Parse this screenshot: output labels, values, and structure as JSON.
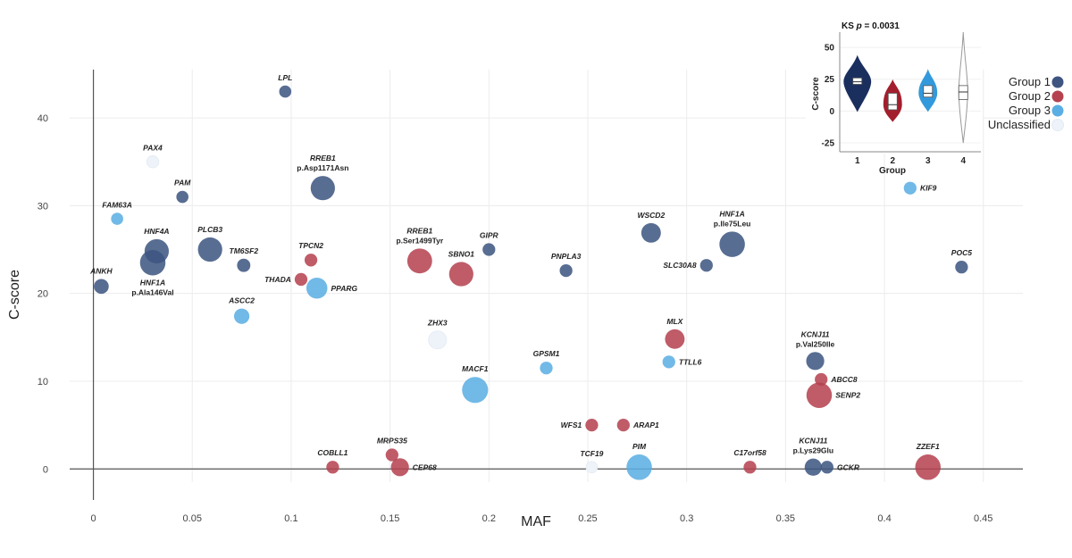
{
  "chart_data": {
    "type": "scatter",
    "xlabel": "MAF",
    "ylabel": "C-score",
    "xlim": [
      -0.012,
      0.47
    ],
    "ylim": [
      -1.5,
      45.5
    ],
    "xticks": [
      0,
      0.05,
      0.1,
      0.15,
      0.2,
      0.25,
      0.3,
      0.35,
      0.4,
      0.45
    ],
    "xtick_labels": [
      "0",
      "0.05",
      "0.1",
      "0.15",
      "0.2",
      "0.25",
      "0.3",
      "0.35",
      "0.4",
      "0.45"
    ],
    "yticks": [
      0,
      10,
      20,
      30,
      40
    ],
    "ytick_labels": [
      "0",
      "10",
      "20",
      "30",
      "40"
    ],
    "grid": true,
    "legend": {
      "placement": "right",
      "items": [
        {
          "label": "Group 1",
          "color": "#3d5580"
        },
        {
          "label": "Group 2",
          "color": "#b5414f"
        },
        {
          "label": "Group 3",
          "color": "#5aaee3"
        },
        {
          "label": "Unclassified",
          "color": "#eef3f9"
        }
      ]
    },
    "points": [
      {
        "gene": "LPL",
        "variant": "",
        "x": 0.097,
        "y": 43,
        "size": 1,
        "group": "Group 1",
        "label_pos": "above"
      },
      {
        "gene": "PAX4",
        "variant": "",
        "x": 0.03,
        "y": 35,
        "size": 1,
        "group": "Unclassified",
        "label_pos": "above"
      },
      {
        "gene": "PAM",
        "variant": "",
        "x": 0.045,
        "y": 31,
        "size": 1,
        "group": "Group 1",
        "label_pos": "above"
      },
      {
        "gene": "RREB1",
        "variant": "p.Asp1171Asn",
        "x": 0.116,
        "y": 32,
        "size": 4,
        "group": "Group 1",
        "label_pos": "above"
      },
      {
        "gene": "FAM63A",
        "variant": "",
        "x": 0.012,
        "y": 28.5,
        "size": 1,
        "group": "Group 3",
        "label_pos": "above"
      },
      {
        "gene": "HNF4A",
        "variant": "",
        "x": 0.032,
        "y": 24.8,
        "size": 4,
        "group": "Group 1",
        "label_pos": "above"
      },
      {
        "gene": "HNF1A",
        "variant": "p.Ala146Val",
        "x": 0.03,
        "y": 23.5,
        "size": 4.4,
        "group": "Group 1",
        "label_pos": "below"
      },
      {
        "gene": "PLCB3",
        "variant": "",
        "x": 0.059,
        "y": 25,
        "size": 4,
        "group": "Group 1",
        "label_pos": "above"
      },
      {
        "gene": "TM6SF2",
        "variant": "",
        "x": 0.076,
        "y": 23.2,
        "size": 1.2,
        "group": "Group 1",
        "label_pos": "above"
      },
      {
        "gene": "ANKH",
        "variant": "",
        "x": 0.004,
        "y": 20.8,
        "size": 1.5,
        "group": "Group 1",
        "label_pos": "above"
      },
      {
        "gene": "ASCC2",
        "variant": "",
        "x": 0.075,
        "y": 17.4,
        "size": 1.6,
        "group": "Group 3",
        "label_pos": "above"
      },
      {
        "gene": "TPCN2",
        "variant": "",
        "x": 0.11,
        "y": 23.8,
        "size": 1.1,
        "group": "Group 2",
        "label_pos": "above"
      },
      {
        "gene": "THADA",
        "variant": "",
        "x": 0.105,
        "y": 21.6,
        "size": 1.1,
        "group": "Group 2",
        "label_pos": "left"
      },
      {
        "gene": "PPARG",
        "variant": "",
        "x": 0.113,
        "y": 20.6,
        "size": 3,
        "group": "Group 3",
        "label_pos": "right"
      },
      {
        "gene": "RREB1",
        "variant": "p.Ser1499Tyr",
        "x": 0.165,
        "y": 23.7,
        "size": 4.2,
        "group": "Group 2",
        "label_pos": "above"
      },
      {
        "gene": "SBNO1",
        "variant": "",
        "x": 0.186,
        "y": 22.2,
        "size": 4,
        "group": "Group 2",
        "label_pos": "above"
      },
      {
        "gene": "GIPR",
        "variant": "",
        "x": 0.2,
        "y": 25,
        "size": 1.1,
        "group": "Group 1",
        "label_pos": "above"
      },
      {
        "gene": "PNPLA3",
        "variant": "",
        "x": 0.239,
        "y": 22.6,
        "size": 1.1,
        "group": "Group 1",
        "label_pos": "above"
      },
      {
        "gene": "ZHX3",
        "variant": "",
        "x": 0.174,
        "y": 14.7,
        "size": 2.2,
        "group": "Unclassified",
        "label_pos": "above"
      },
      {
        "gene": "GPSM1",
        "variant": "",
        "x": 0.229,
        "y": 11.5,
        "size": 1.1,
        "group": "Group 3",
        "label_pos": "above"
      },
      {
        "gene": "MACF1",
        "variant": "",
        "x": 0.193,
        "y": 9,
        "size": 4.6,
        "group": "Group 3",
        "label_pos": "above"
      },
      {
        "gene": "WSCD2",
        "variant": "",
        "x": 0.282,
        "y": 26.9,
        "size": 2.6,
        "group": "Group 1",
        "label_pos": "above"
      },
      {
        "gene": "HNF1A",
        "variant": "p.Ile75Leu",
        "x": 0.323,
        "y": 25.6,
        "size": 4.4,
        "group": "Group 1",
        "label_pos": "above"
      },
      {
        "gene": "SLC30A8",
        "variant": "",
        "x": 0.31,
        "y": 23.2,
        "size": 1.1,
        "group": "Group 1",
        "label_pos": "left"
      },
      {
        "gene": "MLX",
        "variant": "",
        "x": 0.294,
        "y": 14.8,
        "size": 2.6,
        "group": "Group 2",
        "label_pos": "above"
      },
      {
        "gene": "TTLL6",
        "variant": "",
        "x": 0.291,
        "y": 12.2,
        "size": 1.1,
        "group": "Group 3",
        "label_pos": "right"
      },
      {
        "gene": "WFS1",
        "variant": "",
        "x": 0.252,
        "y": 5,
        "size": 1.1,
        "group": "Group 2",
        "label_pos": "left"
      },
      {
        "gene": "ARAP1",
        "variant": "",
        "x": 0.268,
        "y": 5,
        "size": 1.1,
        "group": "Group 2",
        "label_pos": "right"
      },
      {
        "gene": "TCF19",
        "variant": "",
        "x": 0.252,
        "y": 0.2,
        "size": 0.9,
        "group": "Unclassified",
        "label_pos": "above"
      },
      {
        "gene": "PIM",
        "variant": "",
        "x": 0.276,
        "y": 0.2,
        "size": 4.4,
        "group": "Group 3",
        "label_pos": "above"
      },
      {
        "gene": "COBLL1",
        "variant": "",
        "x": 0.121,
        "y": 0.2,
        "size": 1.1,
        "group": "Group 2",
        "label_pos": "above"
      },
      {
        "gene": "MRPS35",
        "variant": "",
        "x": 0.151,
        "y": 1.6,
        "size": 1.1,
        "group": "Group 2",
        "label_pos": "above"
      },
      {
        "gene": "CEP68",
        "variant": "",
        "x": 0.155,
        "y": 0.2,
        "size": 2.2,
        "group": "Group 2",
        "label_pos": "right"
      },
      {
        "gene": "C17orf58",
        "variant": "",
        "x": 0.332,
        "y": 0.2,
        "size": 1.1,
        "group": "Group 2",
        "label_pos": "above"
      },
      {
        "gene": "KCNJ11",
        "variant": "p.Val250Ile",
        "x": 0.365,
        "y": 12.3,
        "size": 2.2,
        "group": "Group 1",
        "label_pos": "above"
      },
      {
        "gene": "ABCC8",
        "variant": "",
        "x": 0.368,
        "y": 10.2,
        "size": 1.1,
        "group": "Group 2",
        "label_pos": "right"
      },
      {
        "gene": "SENP2",
        "variant": "",
        "x": 0.367,
        "y": 8.4,
        "size": 4.4,
        "group": "Group 2",
        "label_pos": "right"
      },
      {
        "gene": "KCNJ11",
        "variant": "p.Lys29Glu",
        "x": 0.364,
        "y": 0.2,
        "size": 2,
        "group": "Group 1",
        "label_pos": "above"
      },
      {
        "gene": "GCKR",
        "variant": "",
        "x": 0.371,
        "y": 0.2,
        "size": 1.1,
        "group": "Group 1",
        "label_pos": "right"
      },
      {
        "gene": "KIF9",
        "variant": "",
        "x": 0.413,
        "y": 32,
        "size": 1.1,
        "group": "Group 3",
        "label_pos": "right"
      },
      {
        "gene": "ZZEF1",
        "variant": "",
        "x": 0.422,
        "y": 0.2,
        "size": 4.4,
        "group": "Group 2",
        "label_pos": "above"
      },
      {
        "gene": "POC5",
        "variant": "",
        "x": 0.439,
        "y": 23,
        "size": 1.1,
        "group": "Group 1",
        "label_pos": "above"
      }
    ],
    "inset": {
      "type": "violin",
      "title_prefix": "KS ",
      "title_stat": "p",
      "title_value": " = 0.0031",
      "xlabel": "Group",
      "ylabel": "C-score",
      "ylim": [
        -32,
        62
      ],
      "yticks": [
        50,
        25,
        0,
        -25
      ],
      "ytick_labels": [
        "50",
        "25",
        "0",
        "-25"
      ],
      "categories": [
        "1",
        "2",
        "3",
        "4"
      ],
      "violins": [
        {
          "category": "1",
          "color": "#1b2f5e",
          "min": 0,
          "q1": 21,
          "median": 23,
          "q3": 26,
          "max": 43,
          "width": 0.9
        },
        {
          "category": "2",
          "color": "#a31e2d",
          "min": -8,
          "q1": 1,
          "median": 5,
          "q3": 14,
          "max": 24,
          "width": 0.6
        },
        {
          "category": "3",
          "color": "#3399dd",
          "min": 0,
          "q1": 11,
          "median": 14,
          "q3": 20,
          "max": 32,
          "width": 0.6
        },
        {
          "category": "4",
          "color": "#ffffff",
          "min": -25,
          "q1": 9,
          "median": 15,
          "q3": 20,
          "max": 62,
          "width": 0.3
        }
      ]
    }
  }
}
